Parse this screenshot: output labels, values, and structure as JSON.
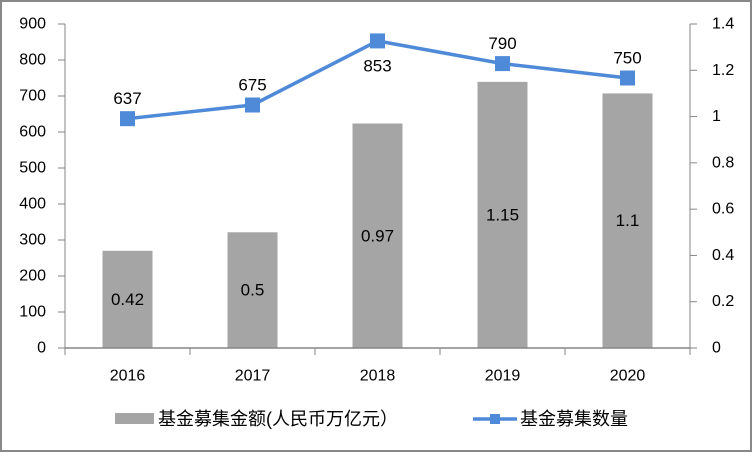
{
  "chart_data": {
    "type": "bar",
    "title": "",
    "xlabel": "",
    "ylabel": "",
    "categories": [
      "2016",
      "2017",
      "2018",
      "2019",
      "2020"
    ],
    "series": [
      {
        "name": "基金募集金额(人民币万亿元）",
        "type": "bar",
        "axis": "right",
        "values": [
          0.42,
          0.5,
          0.97,
          1.15,
          1.1
        ],
        "labels": [
          "0.42",
          "0.5",
          "0.97",
          "1.15",
          "1.1"
        ],
        "label_position": "center",
        "color": "#a5a5a5"
      },
      {
        "name": "基金募集数量",
        "type": "line",
        "axis": "left",
        "values": [
          637,
          675,
          853,
          790,
          750
        ],
        "labels": [
          "637",
          "675",
          "853",
          "790",
          "750"
        ],
        "label_positions": [
          "above",
          "above",
          "below",
          "above",
          "above"
        ],
        "marker": "square",
        "color": "#4f8ad8"
      }
    ],
    "y_left": {
      "min": 0,
      "max": 900,
      "step": 100,
      "ticks": [
        "0",
        "100",
        "200",
        "300",
        "400",
        "500",
        "600",
        "700",
        "800",
        "900"
      ]
    },
    "y_right": {
      "min": 0,
      "max": 1.4,
      "step": 0.2,
      "ticks": [
        "0",
        "0.2",
        "0.4",
        "0.6",
        "0.8",
        "1",
        "1.2",
        "1.4"
      ]
    },
    "grid": false,
    "legend_position": "bottom",
    "legend": [
      {
        "label": "基金募集金额(人民币万亿元）",
        "marker": "bar-swatch",
        "color": "#a5a5a5"
      },
      {
        "label": "基金募集数量",
        "marker": "line-square",
        "color": "#4f8ad8"
      }
    ],
    "colors": {
      "axis": "#868686",
      "frame": "#888888",
      "background": "#ffffff"
    }
  }
}
